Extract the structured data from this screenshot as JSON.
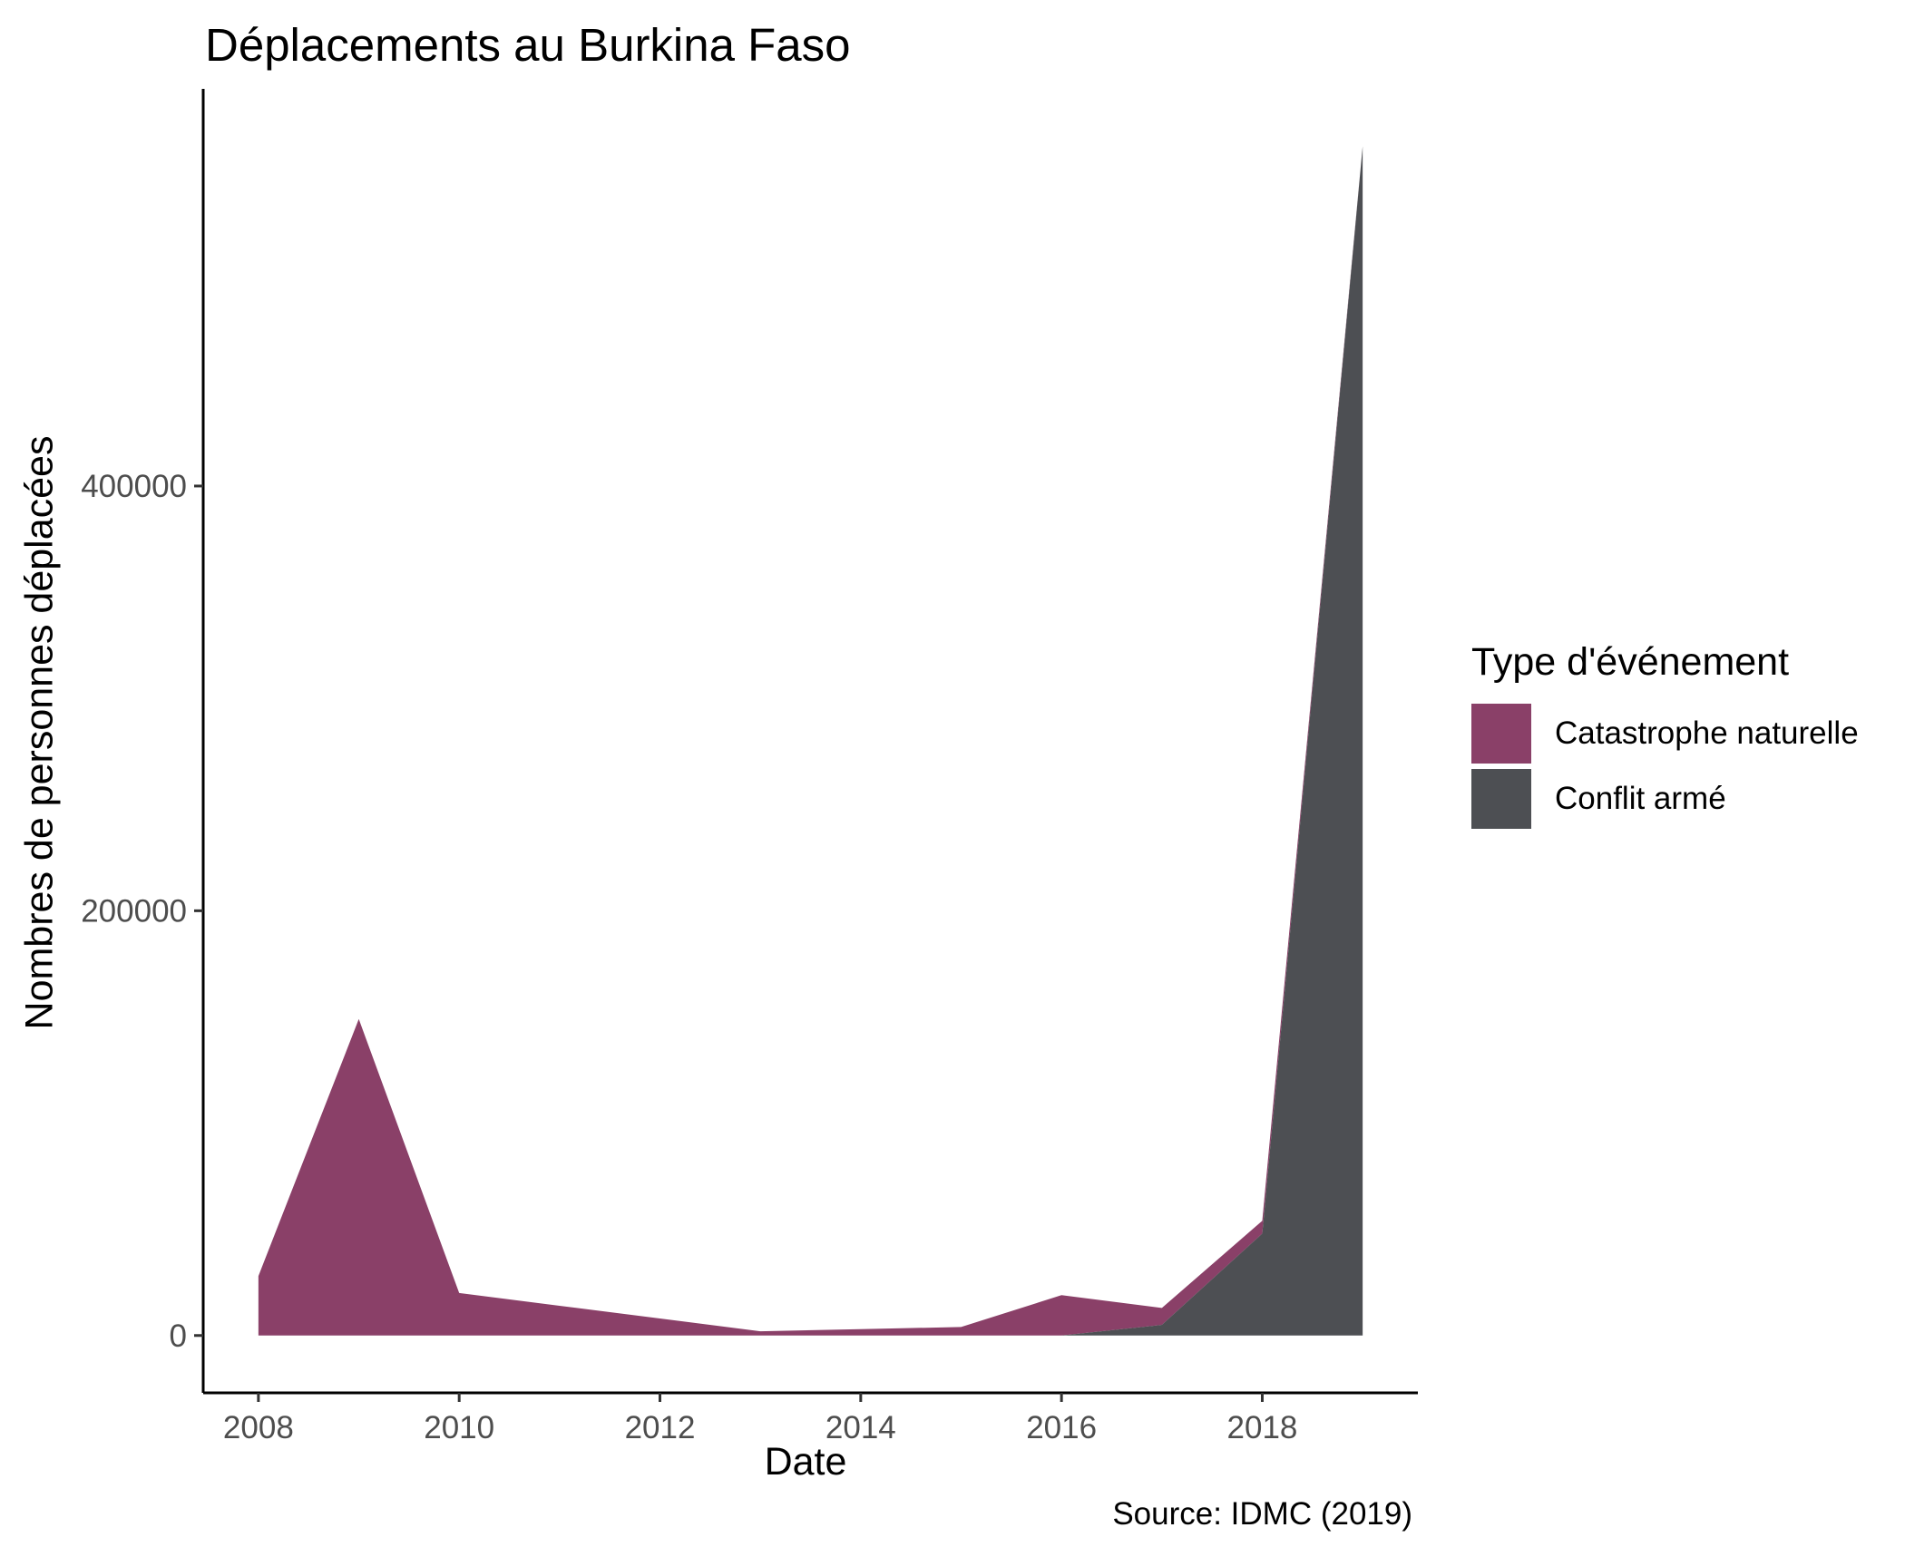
{
  "chart_data": {
    "type": "area",
    "title": "Déplacements au Burkina Faso",
    "xlabel": "Date",
    "ylabel": "Nombres de personnes déplacées",
    "caption": "Source: IDMC (2019)",
    "stacked": true,
    "x": [
      2008,
      2009,
      2010,
      2011,
      2012,
      2013,
      2014,
      2015,
      2016,
      2017,
      2018,
      2019
    ],
    "series": [
      {
        "name": "Catastrophe naturelle",
        "color": "#8a4068",
        "values": [
          28000,
          149000,
          20000,
          14000,
          8000,
          2000,
          3000,
          4000,
          19000,
          8000,
          6000,
          0
        ]
      },
      {
        "name": "Conflit armé",
        "color": "#4d4f53",
        "values": [
          0,
          0,
          0,
          0,
          0,
          0,
          0,
          0,
          0,
          5000,
          48000,
          560000
        ]
      }
    ],
    "xlim": [
      2007.45,
      2019.55
    ],
    "ylim": [
      -27000,
      587000
    ],
    "x_ticks": [
      2008,
      2010,
      2012,
      2014,
      2016,
      2018
    ],
    "y_ticks": [
      0,
      200000,
      400000
    ],
    "legend": {
      "title": "Type d'événement",
      "position": "right"
    },
    "grid": false
  }
}
